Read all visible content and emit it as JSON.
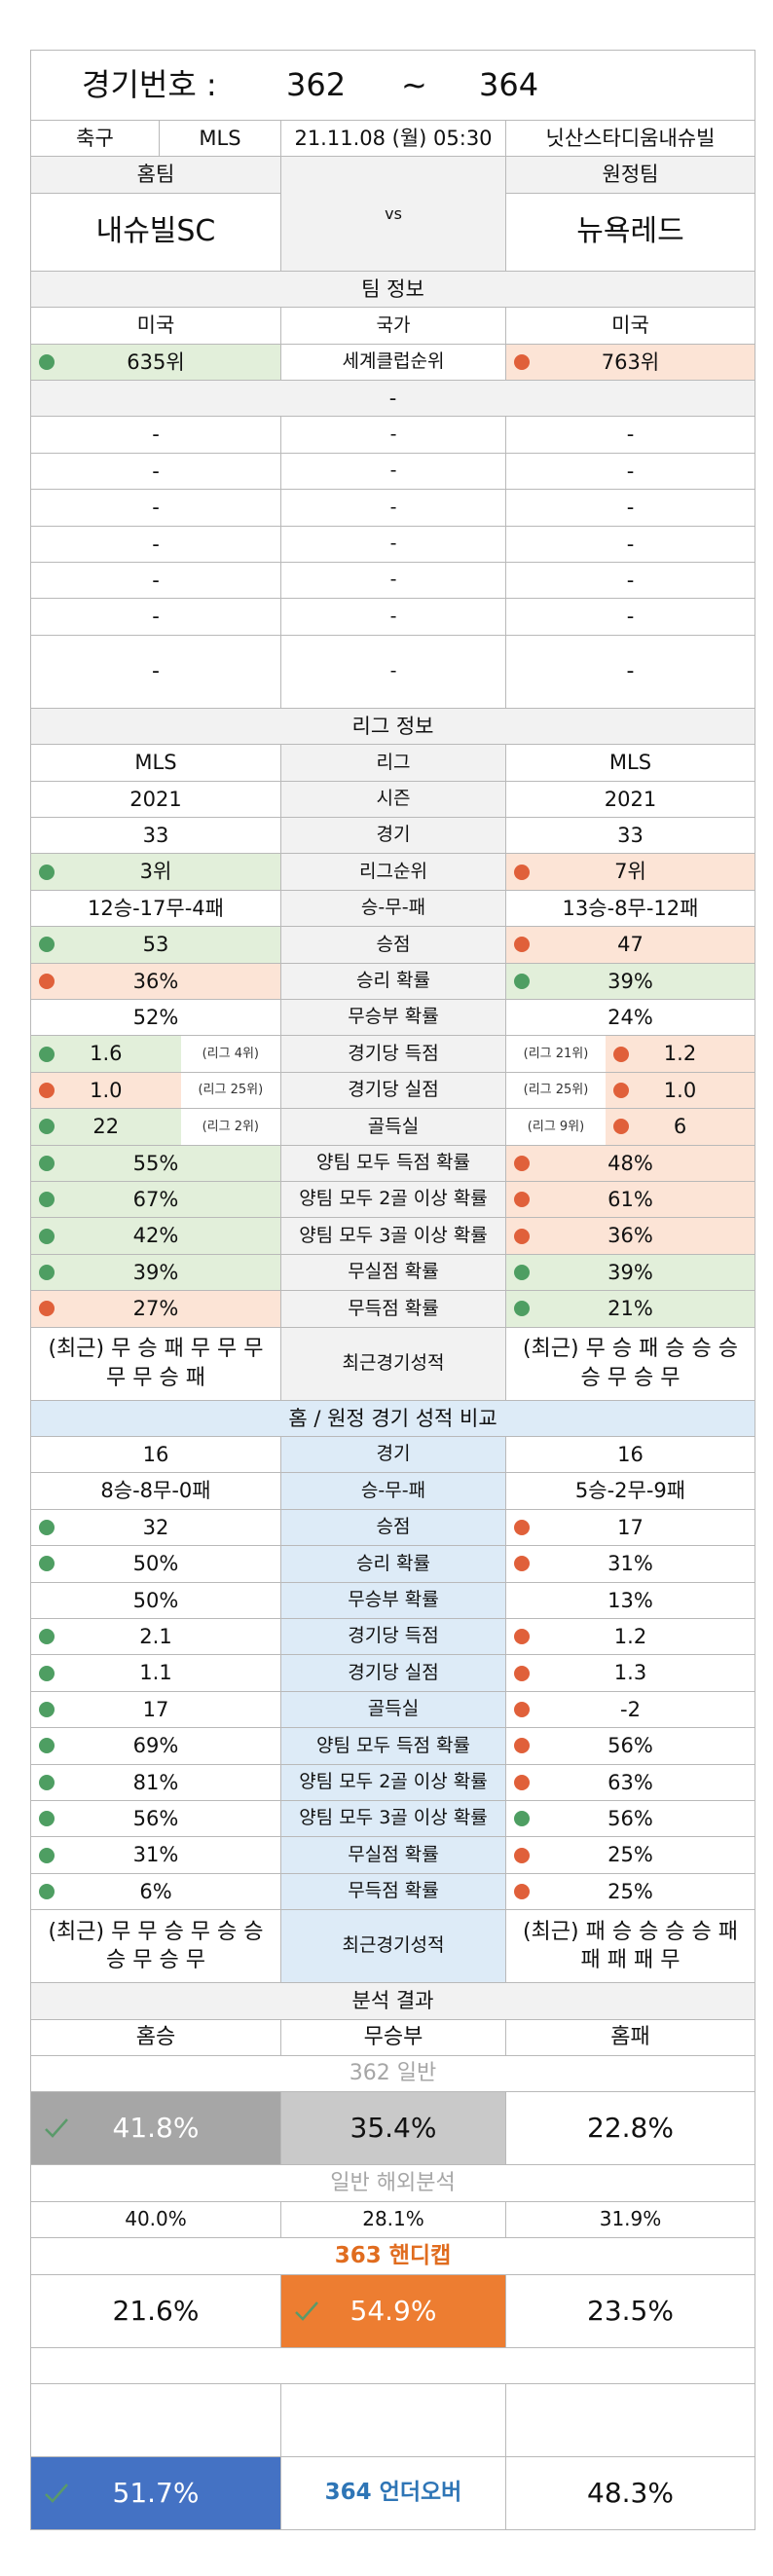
{
  "header": {
    "label": "경기번호 :",
    "from": "362",
    "sep": "~",
    "to": "364"
  },
  "match": {
    "sport": "축구",
    "league": "MLS",
    "datetime": "21.11.08 (월) 05:30",
    "venue": "닛산스타디움내슈빌"
  },
  "teams": {
    "home_label": "홈팀",
    "vs": "vs",
    "away_label": "원정팀",
    "home": "내슈빌SC",
    "away": "뉴욕레드"
  },
  "sections": [
    {
      "title": "팀 정보",
      "rows": [
        [
          "미국",
          "국가",
          "미국"
        ],
        [
          {
            "text": "635위",
            "dot": "#4e9e62",
            "fill": "#e2efda"
          },
          "세계클럽순위",
          {
            "text": "763위",
            "dot": "#e0603a",
            "fill": "#fce4d6"
          }
        ]
      ]
    },
    {
      "title": "-",
      "rows": [
        [
          "-",
          "-",
          "-"
        ],
        [
          "-",
          "-",
          "-"
        ],
        [
          "-",
          "-",
          "-"
        ],
        [
          "-",
          "-",
          "-"
        ],
        [
          "-",
          "-",
          "-"
        ],
        [
          "-",
          "-",
          "-"
        ],
        [
          "-",
          "-",
          "-"
        ]
      ]
    },
    {
      "title": "리그 정보",
      "rows": [
        [
          "MLS",
          "리그",
          "MLS"
        ],
        [
          "2021",
          "시즌",
          "2021"
        ],
        [
          "33",
          "경기",
          "33"
        ],
        [
          {
            "text": "3위",
            "dot": "#4e9e62",
            "fill": "#e2efda"
          },
          "리그순위",
          {
            "text": "7위",
            "dot": "#e0603a",
            "fill": "#fce4d6"
          }
        ],
        [
          "12승-17무-4패",
          "승-무-패",
          "13승-8무-12패"
        ],
        [
          {
            "text": "53",
            "dot": "#4e9e62",
            "fill": "#e2efda"
          },
          "승점",
          {
            "text": "47",
            "dot": "#e0603a",
            "fill": "#fce4d6"
          }
        ],
        [
          {
            "text": "36%",
            "dot": "#e0603a",
            "fill": "#fce4d6"
          },
          "승리 확률",
          {
            "text": "39%",
            "dot": "#4e9e62",
            "fill": "#e2efda"
          }
        ],
        [
          "52%",
          "무승부 확률",
          "24%"
        ],
        [
          {
            "text": "1.6",
            "note": "(리그 4위)",
            "dot": "#4e9e62",
            "fill": "#e2efda"
          },
          "경기당 득점",
          {
            "text": "1.2",
            "note": "(리그 21위)",
            "dot": "#e0603a",
            "fill": "#fce4d6"
          }
        ],
        [
          {
            "text": "1.0",
            "note": "(리그 25위)",
            "dot": "#e0603a",
            "fill": "#fce4d6"
          },
          "경기당 실점",
          {
            "text": "1.0",
            "note": "(리그 25위)",
            "dot": "#e0603a",
            "fill": "#fce4d6"
          }
        ],
        [
          {
            "text": "22",
            "note": "(리그 2위)",
            "dot": "#4e9e62",
            "fill": "#e2efda"
          },
          "골득실",
          {
            "text": "6",
            "note": "(리그 9위)",
            "dot": "#e0603a",
            "fill": "#fce4d6"
          }
        ],
        [
          {
            "text": "55%",
            "dot": "#4e9e62",
            "fill": "#e2efda"
          },
          "양팀 모두 득점 확률",
          {
            "text": "48%",
            "dot": "#e0603a",
            "fill": "#fce4d6"
          }
        ],
        [
          {
            "text": "67%",
            "dot": "#4e9e62",
            "fill": "#e2efda"
          },
          "양팀 모두 2골 이상 확률",
          {
            "text": "61%",
            "dot": "#e0603a",
            "fill": "#fce4d6"
          }
        ],
        [
          {
            "text": "42%",
            "dot": "#4e9e62",
            "fill": "#e2efda"
          },
          "양팀 모두 3골 이상 확률",
          {
            "text": "36%",
            "dot": "#e0603a",
            "fill": "#fce4d6"
          }
        ],
        [
          {
            "text": "39%",
            "dot": "#4e9e62",
            "fill": "#e2efda"
          },
          "무실점 확률",
          {
            "text": "39%",
            "dot": "#4e9e62",
            "fill": "#e2efda"
          }
        ],
        [
          {
            "text": "27%",
            "dot": "#e0603a",
            "fill": "#fce4d6"
          },
          "무득점 확률",
          {
            "text": "21%",
            "dot": "#4e9e62",
            "fill": "#e2efda"
          }
        ],
        [
          "(최근) 무 승 패 무 무 무 무 무 승 패",
          "최근경기성적",
          "(최근) 무 승 패 승 승 승 승 무 승 무"
        ]
      ]
    },
    {
      "title": "홈 / 원정 경기 성적 비교",
      "rows": [
        [
          "16",
          "경기",
          "16"
        ],
        [
          "8승-8무-0패",
          "승-무-패",
          "5승-2무-9패"
        ],
        [
          {
            "text": "32",
            "dot": "#4e9e62"
          },
          "승점",
          {
            "text": "17",
            "dot": "#e0603a"
          }
        ],
        [
          {
            "text": "50%",
            "dot": "#4e9e62"
          },
          "승리 확률",
          {
            "text": "31%",
            "dot": "#e0603a"
          }
        ],
        [
          "50%",
          "무승부 확률",
          "13%"
        ],
        [
          {
            "text": "2.1",
            "dot": "#4e9e62"
          },
          "경기당 득점",
          {
            "text": "1.2",
            "dot": "#e0603a"
          }
        ],
        [
          {
            "text": "1.1",
            "dot": "#4e9e62"
          },
          "경기당 실점",
          {
            "text": "1.3",
            "dot": "#e0603a"
          }
        ],
        [
          {
            "text": "17",
            "dot": "#4e9e62"
          },
          "골득실",
          {
            "text": "-2",
            "dot": "#e0603a"
          }
        ],
        [
          {
            "text": "69%",
            "dot": "#4e9e62"
          },
          "양팀 모두 득점 확률",
          {
            "text": "56%",
            "dot": "#e0603a"
          }
        ],
        [
          {
            "text": "81%",
            "dot": "#4e9e62"
          },
          "양팀 모두 2골 이상 확률",
          {
            "text": "63%",
            "dot": "#e0603a"
          }
        ],
        [
          {
            "text": "56%",
            "dot": "#4e9e62"
          },
          "양팀 모두 3골 이상 확률",
          {
            "text": "56%",
            "dot": "#4e9e62"
          }
        ],
        [
          {
            "text": "31%",
            "dot": "#4e9e62"
          },
          "무실점 확률",
          {
            "text": "25%",
            "dot": "#e0603a"
          }
        ],
        [
          {
            "text": "6%",
            "dot": "#4e9e62"
          },
          "무득점 확률",
          {
            "text": "25%",
            "dot": "#e0603a"
          }
        ],
        [
          "(최근) 무 무 승 무 승 승 승 무 승 무",
          "최근경기성적",
          "(최근) 패 승 승 승 승 패 패 패 패 무"
        ]
      ]
    }
  ],
  "analysis": {
    "title": "분석 결과",
    "columns": [
      "홈승",
      "무승부",
      "홈패"
    ],
    "general": {
      "title": "362 일반",
      "values": [
        "41.8%",
        "35.4%",
        "22.8%"
      ]
    },
    "overseas": {
      "title": "일반 해외분석",
      "values": [
        "40.0%",
        "28.1%",
        "31.9%"
      ]
    },
    "handicap": {
      "title": "363 핸디캡",
      "values": [
        "21.6%",
        "54.9%",
        "23.5%"
      ]
    },
    "underover": {
      "title": "364 언더오버",
      "values": [
        "51.7%",
        "48.3%"
      ]
    }
  }
}
